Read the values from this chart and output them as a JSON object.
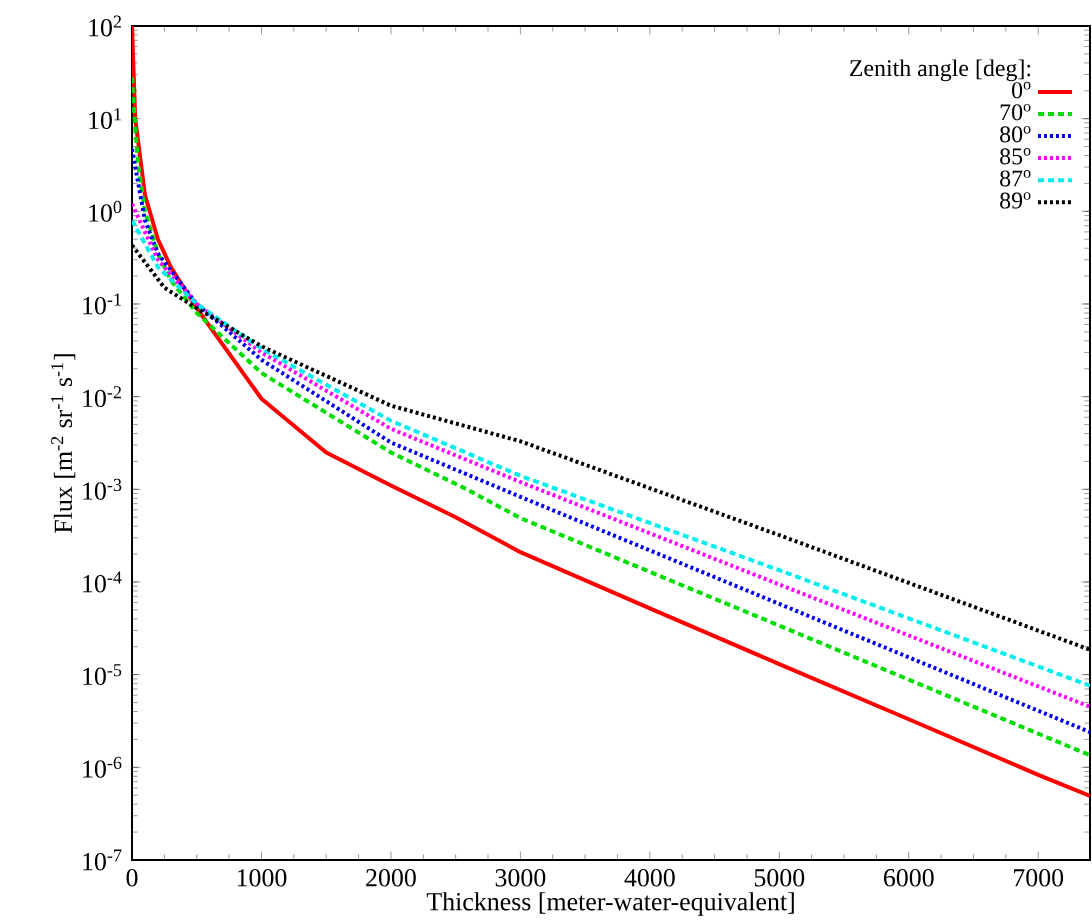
{
  "chart_data": {
    "type": "line",
    "xlabel": "Thickness [meter-water-equivalent]",
    "ylabel": "Flux [m$^{-2}$ sr$^{-1}$ s$^{-1}$]",
    "legend_title": "Zenith angle [deg]:",
    "legend": "top right",
    "log": "y",
    "grid": false,
    "marker": "none",
    "xlim": [
      0,
      7400
    ],
    "xticks": [
      0,
      1000,
      2000,
      3000,
      4000,
      5000,
      6000,
      7000
    ],
    "ylim": [
      1e-07,
      100
    ],
    "yticks": [
      {
        "value": 1e-07,
        "label": "10$^{-7}$"
      },
      {
        "value": 1e-06,
        "label": "10$^{-6}$"
      },
      {
        "value": 1e-05,
        "label": "10$^{-5}$"
      },
      {
        "value": 0.0001,
        "label": "10$^{-4}$"
      },
      {
        "value": 0.001,
        "label": "10$^{-3}$"
      },
      {
        "value": 0.01,
        "label": "10$^{-2}$"
      },
      {
        "value": 0.1,
        "label": "10$^{-1}$"
      },
      {
        "value": 1,
        "label": "10$^{0}$"
      },
      {
        "value": 10,
        "label": "10$^{1}$"
      },
      {
        "value": 100,
        "label": "10$^{2}$"
      }
    ],
    "series": [
      {
        "name": "0$^{o}$",
        "color": "#ff0000",
        "line_style": "solid",
        "x": [
          0,
          25,
          100,
          200,
          300,
          500,
          1000,
          1500,
          2000,
          2500,
          3000,
          4000,
          5000,
          6000,
          7000,
          7400
        ],
        "values": [
          100,
          10,
          1.5,
          0.5,
          0.25,
          0.09,
          0.0095,
          0.0025,
          0.0011,
          0.0005,
          0.00021,
          5.2e-05,
          1.3e-05,
          3.3e-06,
          8.3e-07,
          4.9e-07
        ]
      },
      {
        "name": "70$^{o}$",
        "color": "#00dd00",
        "line_style": "dashed",
        "x": [
          0,
          25,
          50,
          100,
          200,
          300,
          500,
          1000,
          2000,
          2586,
          3000,
          5000,
          7400
        ],
        "values": [
          28,
          8,
          3,
          1.0,
          0.35,
          0.18,
          0.08,
          0.018,
          0.0025,
          0.001,
          0.00049,
          3.38e-05,
          1.35e-06
        ]
      },
      {
        "name": "80$^{o}$",
        "color": "#0000ee",
        "line_style": "dotted",
        "x": [
          0,
          100,
          200,
          500,
          1000,
          2000,
          3000,
          5000,
          7400
        ],
        "values": [
          4.7,
          0.8,
          0.35,
          0.1,
          0.025,
          0.0032,
          0.00083,
          5.8e-05,
          2.4e-06
        ]
      },
      {
        "name": "85$^{o}$",
        "color": "#ff00ff",
        "line_style": "dotted",
        "x": [
          0,
          100,
          200,
          500,
          1000,
          2000,
          3000,
          5000,
          7400
        ],
        "values": [
          1.2,
          0.6,
          0.3,
          0.1,
          0.03,
          0.0045,
          0.0012,
          9.4e-05,
          4.5e-06
        ]
      },
      {
        "name": "87$^{o}$",
        "color": "#00eeee",
        "line_style": "dashed",
        "x": [
          0,
          200,
          500,
          1000,
          2000,
          3000,
          5000,
          7400
        ],
        "values": [
          0.8,
          0.25,
          0.1,
          0.033,
          0.0055,
          0.0014,
          0.000134,
          7.6e-06
        ]
      },
      {
        "name": "89$^{o}$",
        "color": "#000000",
        "line_style": "dotted",
        "x": [
          0,
          250,
          500,
          1000,
          2000,
          3000,
          5000,
          7400
        ],
        "values": [
          0.43,
          0.15,
          0.09,
          0.035,
          0.008,
          0.0033,
          0.00032,
          1.86e-05
        ]
      }
    ]
  }
}
